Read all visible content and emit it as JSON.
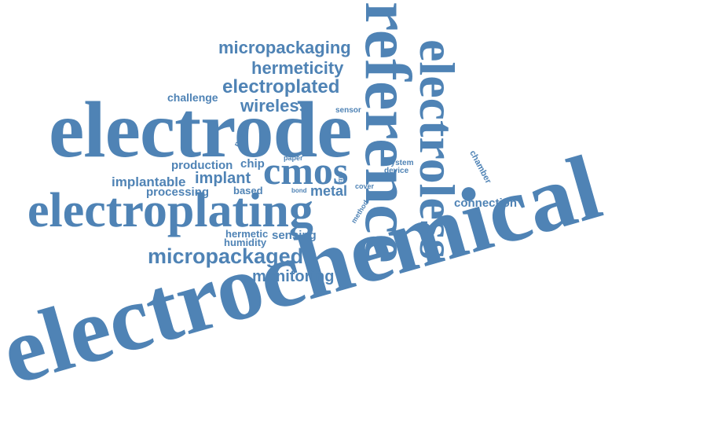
{
  "color": "#4f83b5",
  "words": {
    "electrochemical": "electrochemical",
    "reference": "reference",
    "electroless": "electroless",
    "electrode": "electrode",
    "electroplating": "electroplating",
    "cmos": "cmos",
    "micropackaging": "micropackaging",
    "hermeticity": "hermeticity",
    "electroplated": "electroplated",
    "wireless": "wireless",
    "challenge": "challenge",
    "sensor": "sensor",
    "power": "power",
    "production": "production",
    "chip": "chip",
    "paper": "paper",
    "implantable": "implantable",
    "implant": "implant",
    "data": "data",
    "system": "system",
    "device": "device",
    "chamber": "chamber",
    "processing": "processing",
    "based": "based",
    "bond": "bond",
    "metal": "metal",
    "cover": "cover",
    "method": "method",
    "connection": "connection",
    "hermetic": "hermetic",
    "sensing": "sensing",
    "humidity": "humidity",
    "micropackaged": "micropackaged",
    "monitoring": "monitoring"
  }
}
